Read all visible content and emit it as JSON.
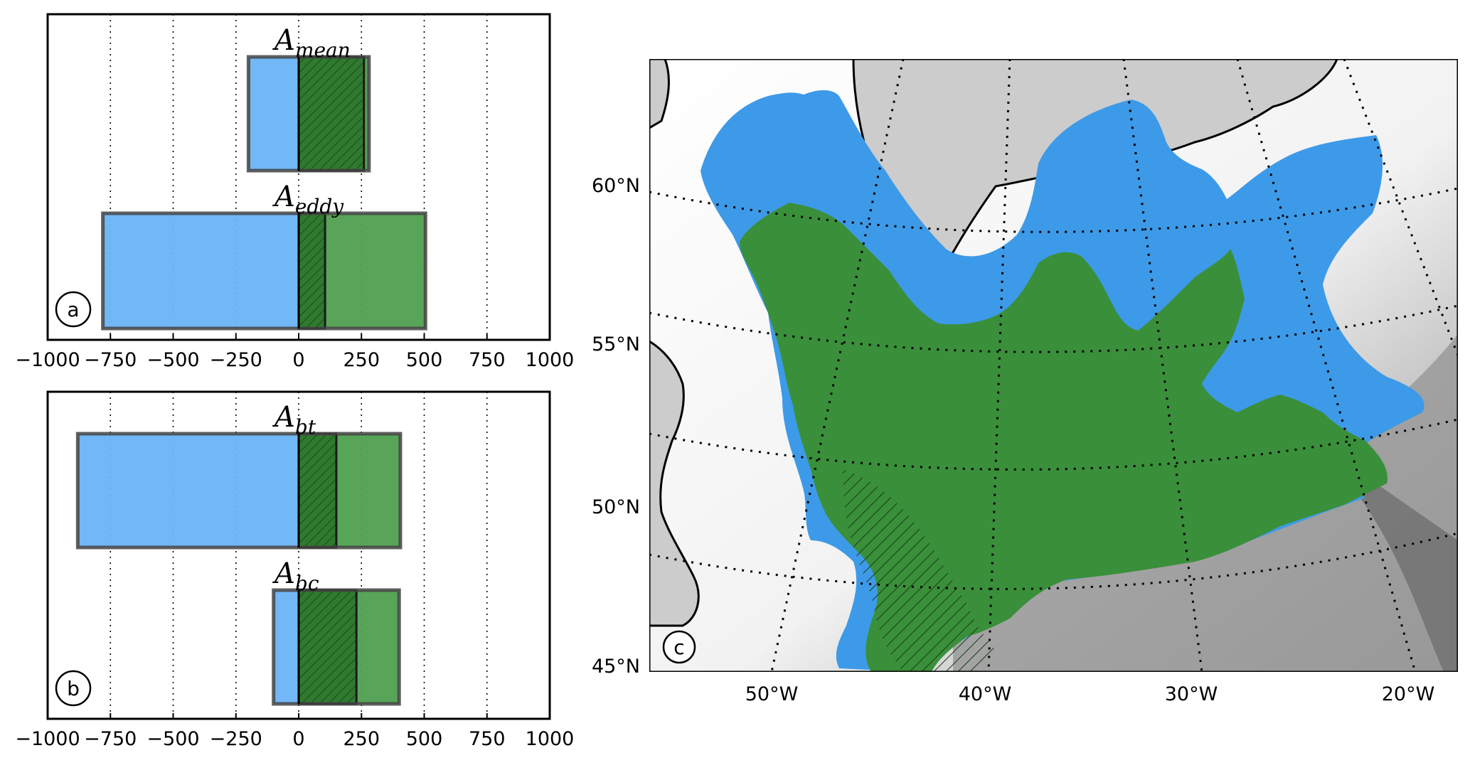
{
  "chart_data": [
    {
      "panel": "a",
      "type": "bar",
      "orientation": "horizontal",
      "xlim": [
        -1000,
        1000
      ],
      "xticks": [
        -1000,
        -750,
        -500,
        -250,
        0,
        250,
        500,
        750,
        1000
      ],
      "grid": "vertical dotted",
      "bars": [
        {
          "label_main": "A",
          "label_sub": "mean",
          "negative": -200,
          "positive": 280,
          "hatched_positive": 260,
          "hatched_negative": 0
        },
        {
          "label_main": "A",
          "label_sub": "eddy",
          "negative": -780,
          "positive": 505,
          "hatched_positive": 105,
          "hatched_negative": 0
        }
      ]
    },
    {
      "panel": "b",
      "type": "bar",
      "orientation": "horizontal",
      "xlim": [
        -1000,
        1000
      ],
      "xticks": [
        -1000,
        -750,
        -500,
        -250,
        0,
        250,
        500,
        750,
        1000
      ],
      "grid": "vertical dotted",
      "bars": [
        {
          "label_main": "A",
          "label_sub": "bt",
          "negative": -880,
          "positive": 405,
          "hatched_positive": 150,
          "hatched_negative": 0
        },
        {
          "label_main": "A",
          "label_sub": "bc",
          "negative": -100,
          "positive": 400,
          "hatched_positive": 230,
          "hatched_negative": 0
        }
      ]
    }
  ],
  "map": {
    "panel": "c",
    "lat_labels": [
      "60°N",
      "55°N",
      "50°N",
      "45°N"
    ],
    "lon_labels": [
      "50°W",
      "40°W",
      "30°W",
      "20°W"
    ]
  },
  "colors": {
    "blue": "#6ab3f5",
    "green": "#4f9f4f",
    "map_blue": "#3d9ae8",
    "map_green": "#3a8f3a",
    "land": "#cccccc"
  }
}
